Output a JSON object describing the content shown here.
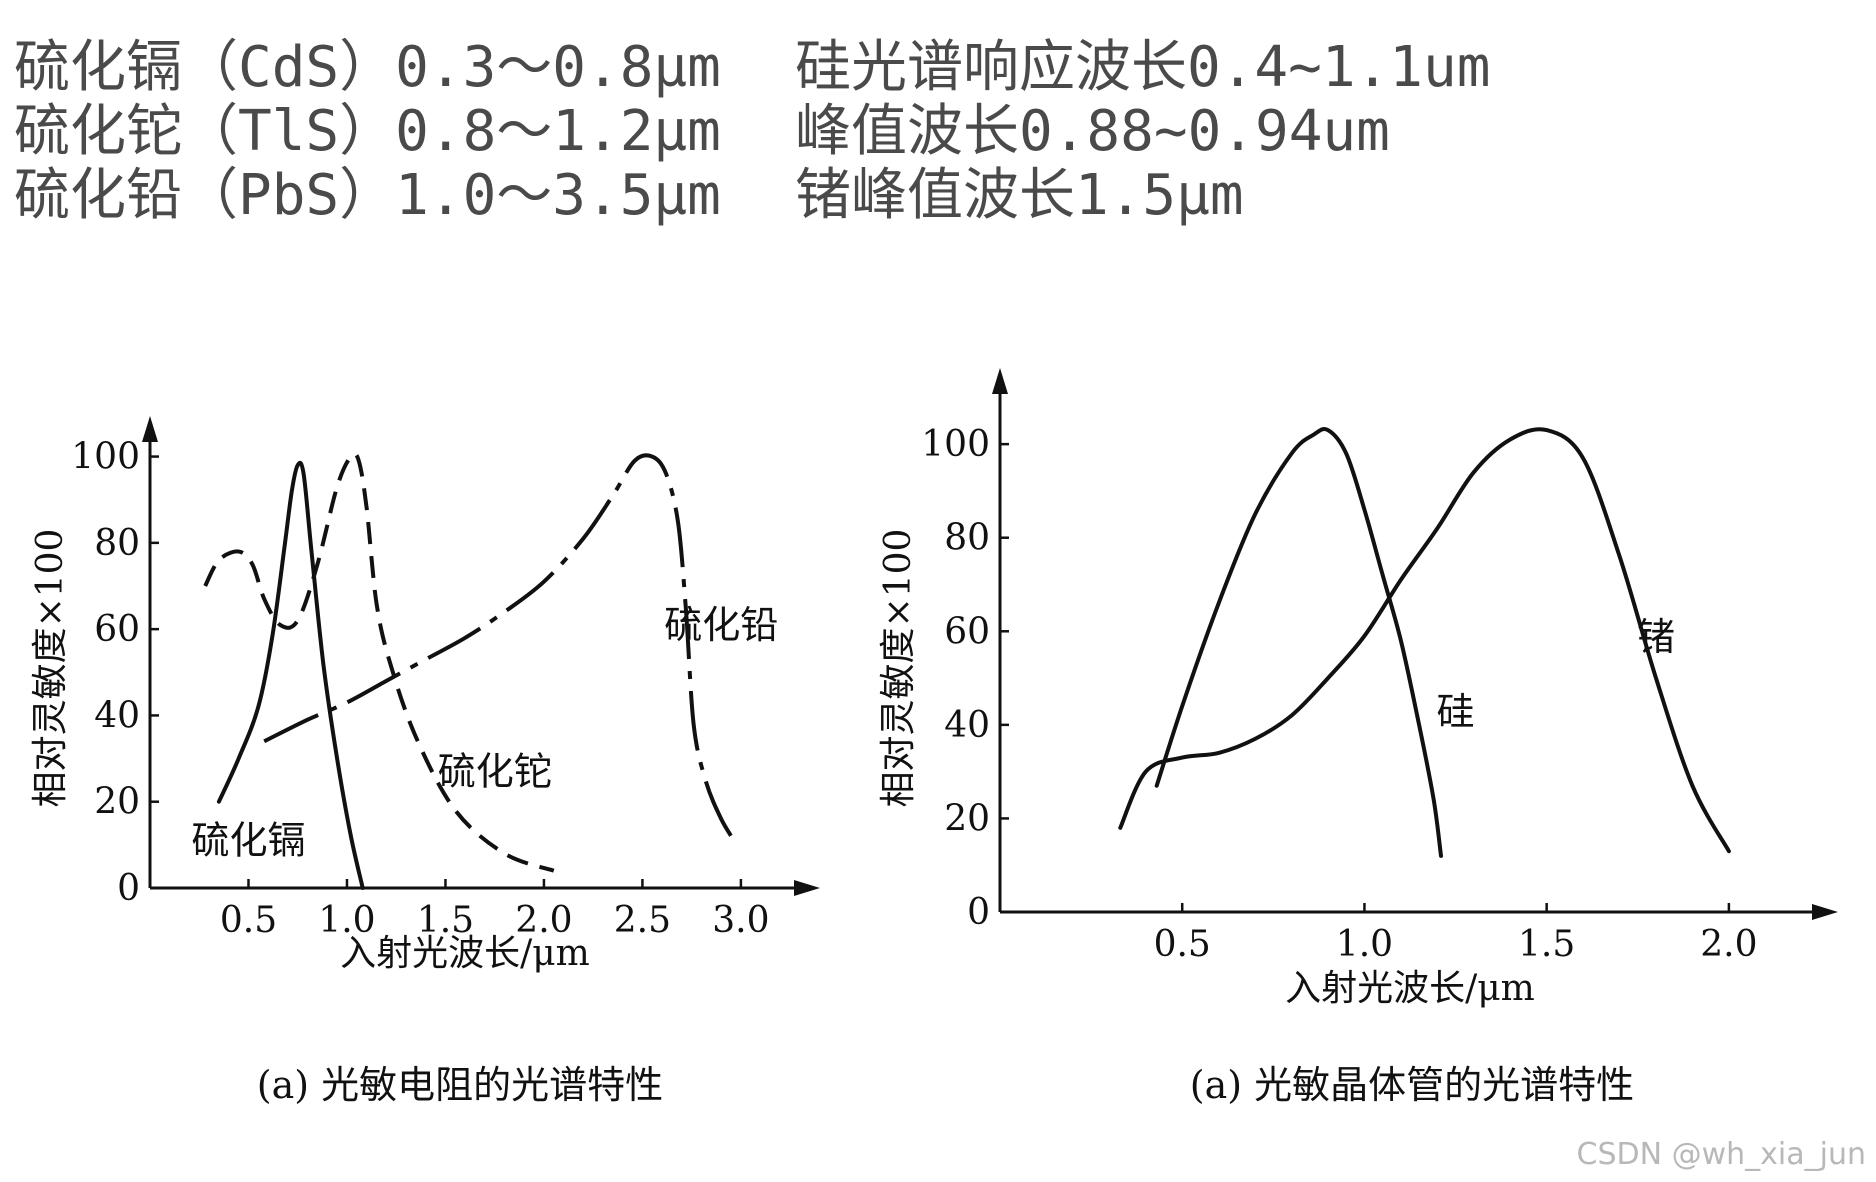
{
  "notes_left": [
    "硫化镉（CdS）0.3～0.8μm",
    "硫化铊（TlS）0.8～1.2μm",
    "硫化铅（PbS）1.0～3.5μm"
  ],
  "notes_right": [
    "硅光谱响应波长0.4~1.1um",
    "峰值波长0.88~0.94um",
    "锗峰值波长1.5μm"
  ],
  "watermark": "CSDN @wh_xia_jun",
  "chart_data": [
    {
      "type": "line",
      "caption": "(a) 光敏电阻的光谱特性",
      "xlabel": "入射光波长/μm",
      "ylabel": "相对灵敏度×100",
      "xlim": [
        0,
        3.3
      ],
      "ylim": [
        0,
        105
      ],
      "xticks": [
        0.5,
        1.0,
        1.5,
        2.0,
        2.5,
        3.0
      ],
      "xtick_labels": [
        "0.5",
        "1.0",
        "1.5",
        "2.0",
        "2.5",
        "3.0"
      ],
      "yticks": [
        0,
        20,
        40,
        60,
        80,
        100
      ],
      "ytick_labels": [
        "0",
        "20",
        "40",
        "60",
        "80",
        "100"
      ],
      "grid": false,
      "series": [
        {
          "name": "硫化镉",
          "style": "solid",
          "label_at": [
            0.5,
            8
          ],
          "x": [
            0.35,
            0.45,
            0.55,
            0.62,
            0.68,
            0.72,
            0.75,
            0.78,
            0.82,
            0.88,
            0.95,
            1.02,
            1.08
          ],
          "y": [
            20,
            30,
            42,
            58,
            78,
            92,
            98,
            96,
            78,
            52,
            30,
            12,
            0
          ]
        },
        {
          "name": "硫化铊",
          "style": "dashed",
          "label_at": [
            1.75,
            24
          ],
          "x": [
            0.28,
            0.35,
            0.45,
            0.52,
            0.58,
            0.66,
            0.75,
            0.85,
            0.95,
            1.02,
            1.06,
            1.1,
            1.15,
            1.22,
            1.35,
            1.55,
            1.8,
            2.05
          ],
          "y": [
            70,
            76,
            78,
            75,
            67,
            61,
            62,
            75,
            93,
            100,
            99,
            88,
            66,
            52,
            35,
            18,
            8,
            4
          ]
        },
        {
          "name": "硫化铅",
          "style": "dashdot",
          "label_at": [
            2.9,
            58
          ],
          "x": [
            0.58,
            0.8,
            1.0,
            1.2,
            1.4,
            1.6,
            1.8,
            2.0,
            2.2,
            2.35,
            2.46,
            2.55,
            2.62,
            2.68,
            2.72,
            2.76,
            2.82,
            2.9,
            2.98
          ],
          "y": [
            34,
            39,
            43,
            48,
            53,
            58,
            64,
            71,
            81,
            91,
            99,
            100,
            96,
            85,
            65,
            38,
            25,
            16,
            10
          ]
        }
      ]
    },
    {
      "type": "line",
      "caption": "(a) 光敏晶体管的光谱特性",
      "xlabel": "入射光波长/μm",
      "ylabel": "相对灵敏度×100",
      "xlim": [
        0,
        2.25
      ],
      "ylim": [
        0,
        112
      ],
      "xticks": [
        0.5,
        1.0,
        1.5,
        2.0
      ],
      "xtick_labels": [
        "0.5",
        "1.0",
        "1.5",
        "2.0"
      ],
      "yticks": [
        0,
        20,
        40,
        60,
        80,
        100
      ],
      "ytick_labels": [
        "0",
        "20",
        "40",
        "60",
        "80",
        "100"
      ],
      "grid": false,
      "series": [
        {
          "name": "硅",
          "style": "solid",
          "label_at": [
            1.25,
            40
          ],
          "x": [
            0.43,
            0.5,
            0.6,
            0.7,
            0.8,
            0.86,
            0.9,
            0.95,
            1.0,
            1.05,
            1.1,
            1.15,
            1.19,
            1.21
          ],
          "y": [
            27,
            44,
            66,
            85,
            98,
            102,
            103,
            98,
            86,
            72,
            58,
            40,
            24,
            12
          ]
        },
        {
          "name": "锗",
          "style": "solid",
          "label_at": [
            1.8,
            56
          ],
          "x": [
            0.33,
            0.4,
            0.5,
            0.6,
            0.7,
            0.8,
            0.9,
            1.0,
            1.1,
            1.2,
            1.3,
            1.4,
            1.5,
            1.6,
            1.7,
            1.8,
            1.9,
            2.0
          ],
          "y": [
            18,
            30,
            33,
            34,
            37,
            42,
            50,
            59,
            71,
            82,
            94,
            101,
            103,
            97,
            76,
            50,
            27,
            13
          ]
        }
      ]
    }
  ]
}
